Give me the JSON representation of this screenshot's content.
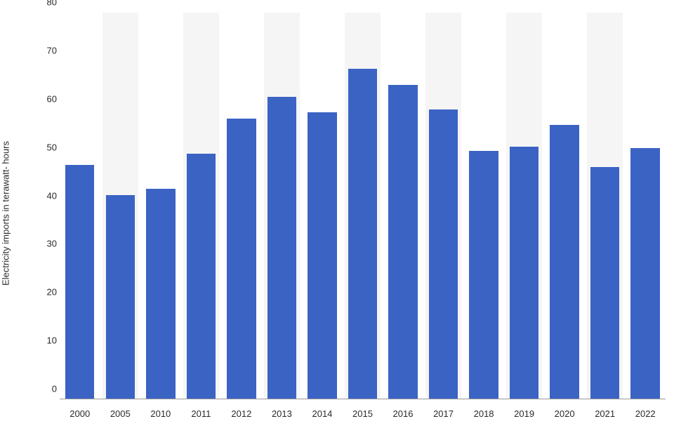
{
  "chart": {
    "type": "bar",
    "y_label": "Electricity imports in terawatt- hours",
    "label_fontsize": 13,
    "tick_fontsize": 13,
    "text_color": "#2a2a2a",
    "categories": [
      "2000",
      "2005",
      "2010",
      "2011",
      "2012",
      "2013",
      "2014",
      "2015",
      "2016",
      "2017",
      "2018",
      "2019",
      "2020",
      "2021",
      "2022"
    ],
    "values": [
      48.5,
      42.2,
      43.5,
      50.8,
      58.0,
      62.6,
      59.3,
      68.3,
      65.0,
      59.9,
      51.3,
      52.2,
      56.8,
      48.0,
      52.0
    ],
    "bar_color": "#3b63c4",
    "stripe_colors": [
      "#ffffff",
      "#f5f5f5"
    ],
    "grid_color": "#ffffff",
    "axis_line_color": "#9a9a9a",
    "background_color": "#ffffff",
    "ylim": [
      0,
      80
    ],
    "ytick_step": 10,
    "bar_width": 0.72
  }
}
